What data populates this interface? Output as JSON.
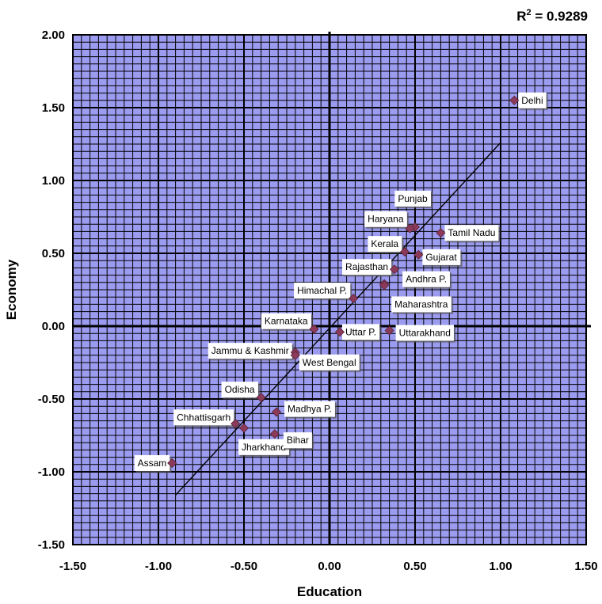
{
  "chart_data": {
    "type": "scatter",
    "annotation": {
      "prefix": "R",
      "superscript": "2",
      "suffix": " = 0.9289"
    },
    "xlabel": "Education",
    "ylabel": "Economy",
    "xlim": [
      -1.5,
      1.5
    ],
    "ylim": [
      -1.5,
      2.0
    ],
    "x_ticks": [
      "-1.50",
      "-1.00",
      "-0.50",
      "0.00",
      "0.50",
      "1.00",
      "1.50"
    ],
    "y_ticks": [
      "2.00",
      "1.50",
      "1.00",
      "0.50",
      "0.00",
      "-0.50",
      "-1.00",
      "-1.50"
    ],
    "grid": true,
    "marker_color": "#8b3a5a",
    "plot_background": "#9b9bef",
    "trendline": {
      "x": [
        -0.9,
        1.0
      ],
      "y": [
        -1.16,
        1.26
      ]
    },
    "points": [
      {
        "label": "Delhi",
        "x": 1.08,
        "y": 1.55
      },
      {
        "label": "Punjab",
        "x": 0.5,
        "y": 0.68
      },
      {
        "label": "Haryana",
        "x": 0.47,
        "y": 0.67
      },
      {
        "label": "Tamil Nadu",
        "x": 0.65,
        "y": 0.64
      },
      {
        "label": "Kerala",
        "x": 0.44,
        "y": 0.51
      },
      {
        "label": "Gujarat",
        "x": 0.52,
        "y": 0.49
      },
      {
        "label": "Rajasthan",
        "x": 0.38,
        "y": 0.39
      },
      {
        "label": "Andhra P.",
        "x": 0.32,
        "y": 0.29
      },
      {
        "label": "Himachal P.",
        "x": 0.14,
        "y": 0.19
      },
      {
        "label": "Maharashtra",
        "x": 0.32,
        "y": 0.28
      },
      {
        "label": "Karnataka",
        "x": -0.09,
        "y": -0.02
      },
      {
        "label": "Uttar P.",
        "x": 0.06,
        "y": -0.04
      },
      {
        "label": "Uttarakhand",
        "x": 0.35,
        "y": -0.03
      },
      {
        "label": "Jammu & Kashmir",
        "x": -0.2,
        "y": -0.18
      },
      {
        "label": "West Bengal",
        "x": -0.2,
        "y": -0.2
      },
      {
        "label": "Odisha",
        "x": -0.4,
        "y": -0.49
      },
      {
        "label": "Madhya P.",
        "x": -0.31,
        "y": -0.59
      },
      {
        "label": "Chhattisgarh",
        "x": -0.55,
        "y": -0.67
      },
      {
        "label": "Jharkhand",
        "x": -0.5,
        "y": -0.7
      },
      {
        "label": "Bihar",
        "x": -0.32,
        "y": -0.74
      },
      {
        "label": "Assam",
        "x": -0.92,
        "y": -0.94
      }
    ]
  }
}
